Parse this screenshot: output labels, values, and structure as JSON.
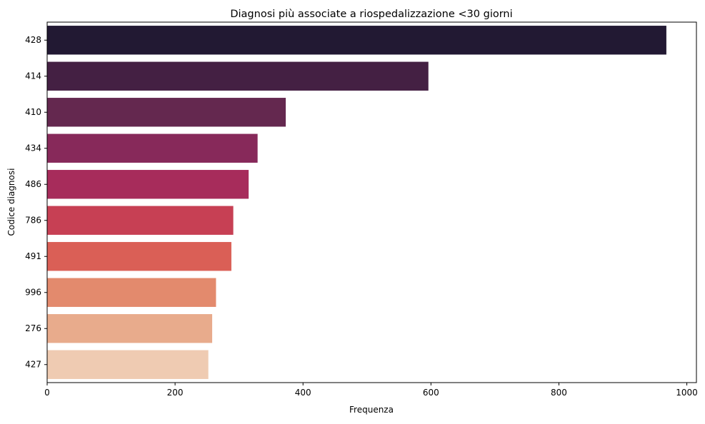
{
  "chart_data": {
    "type": "bar",
    "orientation": "horizontal",
    "title": "Diagnosi più associate a riospedalizzazione <30 giorni",
    "xlabel": "Frequenza",
    "ylabel": "Codice diagnosi",
    "categories": [
      "428",
      "414",
      "410",
      "434",
      "486",
      "786",
      "491",
      "996",
      "276",
      "427"
    ],
    "values": [
      968,
      596,
      373,
      329,
      315,
      291,
      288,
      264,
      258,
      252
    ],
    "xlim": [
      0,
      1015
    ],
    "xticks": [
      0,
      200,
      400,
      600,
      800,
      1000
    ],
    "xtick_labels": [
      "0",
      "200",
      "400",
      "600",
      "800",
      "1000"
    ],
    "grid": false,
    "legend": "none",
    "colors": [
      "#221933",
      "#442043",
      "#64284f",
      "#87295a",
      "#a72c5b",
      "#c74054",
      "#da5f56",
      "#e38a6d",
      "#e8ab8c",
      "#efcbb2"
    ]
  }
}
